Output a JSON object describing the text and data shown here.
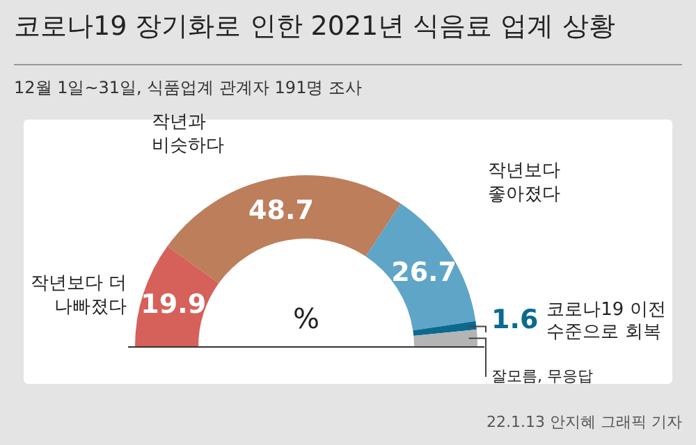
{
  "chart_data": {
    "type": "donut",
    "title": "코로나19 장기화로 인한 2021년 식음료 업계 상황",
    "subtitle": "12월 1일~31일, 식품업계 관계자 191명 조사",
    "categories": [
      "작년보다 더\n나빠졌다",
      "작년과\n비슷하다",
      "작년보다\n좋아졌다",
      "코로나19 이전\n수준으로 회복",
      "잘모름, 무응답"
    ],
    "values": [
      19.9,
      48.7,
      26.7,
      1.6,
      3.1
    ],
    "value_labels": [
      "19.9",
      "48.7",
      "26.7",
      "1.6",
      null
    ],
    "colors": [
      "#d6605a",
      "#bd7e5c",
      "#5ea5c8",
      "#0a6a90",
      "#b4b4b4"
    ],
    "annotations": [
      "%",
      "22.1.13 안지혜 그래픽 기자"
    ]
  }
}
